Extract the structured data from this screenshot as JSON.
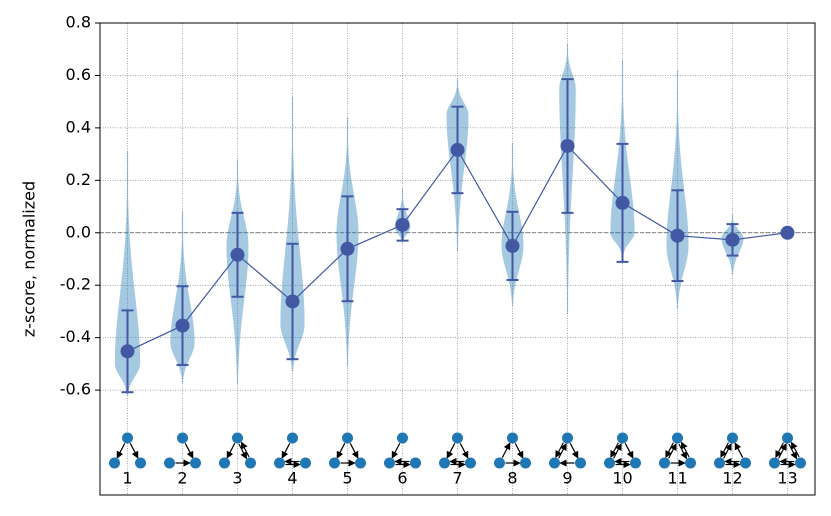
{
  "chart_data": {
    "type": "violin",
    "ylabel": "z-score, normalized",
    "categories": [
      "1",
      "2",
      "3",
      "4",
      "5",
      "6",
      "7",
      "8",
      "9",
      "10",
      "11",
      "12",
      "13"
    ],
    "means": [
      -0.452,
      -0.354,
      -0.084,
      -0.262,
      -0.061,
      0.03,
      0.316,
      -0.05,
      0.331,
      0.114,
      -0.011,
      -0.027,
      0
    ],
    "errors": [
      0.156,
      0.15,
      0.16,
      0.22,
      0.2,
      0.06,
      0.165,
      0.13,
      0.255,
      0.225,
      0.173,
      0.06,
      0
    ],
    "violin_min": [
      -0.62,
      -0.57,
      -0.58,
      -0.53,
      -0.51,
      -0.04,
      -0.07,
      -0.28,
      -0.31,
      -0.09,
      -0.29,
      -0.16,
      null
    ],
    "violin_max": [
      0.31,
      0.08,
      0.28,
      0.52,
      0.44,
      0.17,
      0.59,
      0.34,
      0.72,
      0.66,
      0.62,
      0.07,
      null
    ],
    "violin_peak": [
      -0.5,
      -0.42,
      -0.05,
      -0.35,
      0.0,
      0.02,
      0.45,
      -0.05,
      0.55,
      0.0,
      -0.05,
      -0.02,
      null
    ],
    "violin_width": [
      0.23,
      0.22,
      0.2,
      0.22,
      0.2,
      0.14,
      0.2,
      0.2,
      0.15,
      0.22,
      0.2,
      0.2,
      null
    ],
    "xlim": [
      0.5,
      13.5
    ],
    "ylim": [
      -1.0,
      0.8
    ],
    "yticks": [
      -0.6,
      -0.4,
      -0.2,
      {
        "value": 0,
        "label": "0.0"
      },
      0.2,
      0.4,
      0.6,
      0.8
    ],
    "grid": true,
    "zero_line": true,
    "violin_color": "#1f77b4",
    "mean_color": "#4358a3",
    "node_color": "#1f77b4"
  }
}
